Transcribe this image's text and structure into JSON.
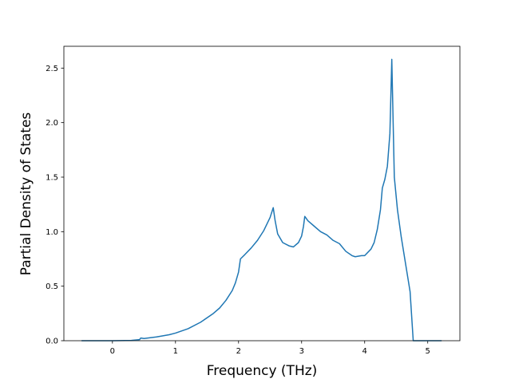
{
  "chart_data": {
    "type": "line",
    "xlabel": "Frequency (THz)",
    "ylabel": "Partial Density of States",
    "color": "#1f77b4",
    "grid": false,
    "xlim": [
      -0.77,
      5.51
    ],
    "ylim": [
      0,
      2.7
    ],
    "xticks": [
      0,
      1,
      2,
      3,
      4,
      5
    ],
    "yticks": [
      {
        "value": 0,
        "label": "0.0"
      },
      0.5,
      {
        "value": 1,
        "label": "1.0"
      },
      1.5,
      {
        "value": 2,
        "label": "2.0"
      },
      2.5
    ],
    "x": [
      -0.49,
      0,
      0.3,
      0.43,
      0.45,
      0.5,
      0.7,
      0.9,
      1.0,
      1.2,
      1.4,
      1.6,
      1.7,
      1.8,
      1.9,
      1.95,
      2.0,
      2.03,
      2.1,
      2.2,
      2.3,
      2.4,
      2.5,
      2.55,
      2.58,
      2.62,
      2.7,
      2.8,
      2.87,
      2.95,
      3.0,
      3.03,
      3.05,
      3.1,
      3.2,
      3.3,
      3.4,
      3.5,
      3.6,
      3.7,
      3.8,
      3.85,
      3.95,
      4.0,
      4.1,
      4.15,
      4.2,
      4.25,
      4.28,
      4.32,
      4.36,
      4.4,
      4.43,
      4.47,
      4.52,
      4.58,
      4.65,
      4.72,
      4.77,
      5.0,
      5.22
    ],
    "values": [
      0,
      0,
      0.003,
      0.01,
      0.025,
      0.02,
      0.035,
      0.055,
      0.07,
      0.11,
      0.17,
      0.25,
      0.3,
      0.37,
      0.46,
      0.53,
      0.63,
      0.75,
      0.79,
      0.85,
      0.92,
      1.01,
      1.13,
      1.22,
      1.1,
      0.98,
      0.9,
      0.87,
      0.86,
      0.9,
      0.96,
      1.05,
      1.14,
      1.1,
      1.05,
      1.0,
      0.97,
      0.92,
      0.89,
      0.82,
      0.78,
      0.77,
      0.78,
      0.78,
      0.84,
      0.9,
      1.02,
      1.2,
      1.4,
      1.48,
      1.6,
      1.9,
      2.58,
      1.5,
      1.2,
      0.95,
      0.7,
      0.45,
      0,
      0,
      0
    ]
  }
}
